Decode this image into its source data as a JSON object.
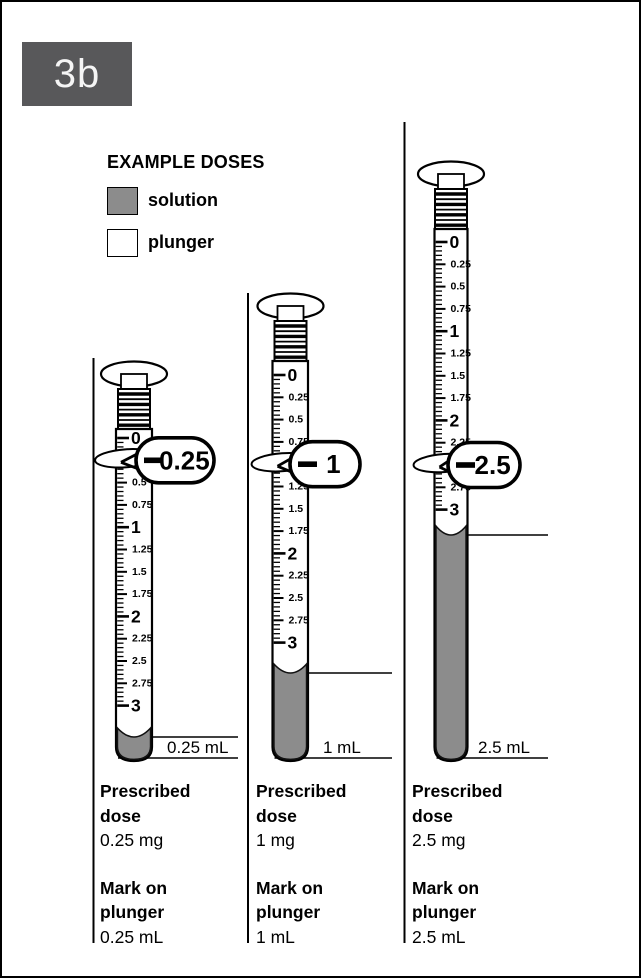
{
  "badge": {
    "label": "3b"
  },
  "legend": {
    "title": "EXAMPLE DOSES",
    "items": [
      {
        "label": "solution",
        "swatch": "gray"
      },
      {
        "label": "plunger",
        "swatch": "white"
      }
    ]
  },
  "colors": {
    "badge_bg": "#58585a",
    "badge_text": "#f5f5f5",
    "solution_gray": "#8c8c8c",
    "outline": "#000000"
  },
  "scale": {
    "unit_labels": [
      "0",
      "0.25",
      "0.5",
      "0.75",
      "1",
      "1.25",
      "1.5",
      "1.75",
      "2",
      "2.25",
      "2.5",
      "2.75",
      "3"
    ]
  },
  "syringes": [
    {
      "callout_value": "0.25",
      "volume_label": "0.25 mL",
      "footer": {
        "dose_heading": "Prescribed dose",
        "dose_value": "0.25 mg",
        "mark_heading": "Mark on plunger",
        "mark_value": "0.25 mL"
      }
    },
    {
      "callout_value": "1",
      "volume_label": "1 mL",
      "footer": {
        "dose_heading": "Prescribed dose",
        "dose_value": "1 mg",
        "mark_heading": "Mark on plunger",
        "mark_value": "1 mL"
      }
    },
    {
      "callout_value": "2.5",
      "volume_label": "2.5 mL",
      "footer": {
        "dose_heading": "Prescribed dose",
        "dose_value": "2.5 mg",
        "mark_heading": "Mark on plunger",
        "mark_value": "2.5 mL"
      }
    }
  ]
}
